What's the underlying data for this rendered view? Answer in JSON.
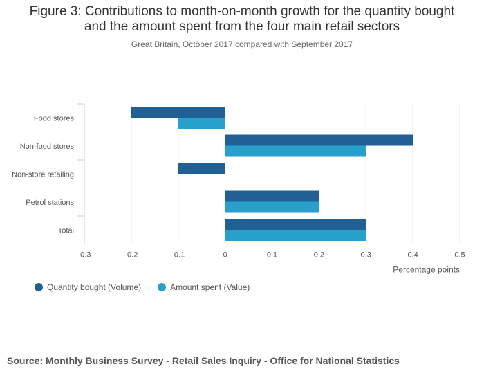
{
  "chart_data": {
    "type": "bar",
    "orientation": "horizontal",
    "title_line1": "Figure 3: Contributions to month-on-month growth for the quantity bought",
    "title_line2": "and the amount spent from the four main retail sectors",
    "subtitle": "Great Britain, October 2017 compared with September 2017",
    "categories": [
      "Food stores",
      "Non-food stores",
      "Non-store retailing",
      "Petrol stations",
      "Total"
    ],
    "series": [
      {
        "name": "Quantity bought (Volume)",
        "color": "#206095",
        "values": [
          -0.2,
          0.4,
          -0.1,
          0.2,
          0.3
        ]
      },
      {
        "name": "Amount spent (Value)",
        "color": "#27a0cc",
        "values": [
          -0.1,
          0.3,
          0.0,
          0.2,
          0.3
        ]
      }
    ],
    "xlim": [
      -0.3,
      0.5
    ],
    "xticks": [
      -0.3,
      -0.2,
      -0.1,
      0,
      0.1,
      0.2,
      0.3,
      0.4,
      0.5
    ],
    "xtick_labels": [
      "-0.3",
      "-0.2",
      "-0.1",
      "0",
      "0.1",
      "0.2",
      "0.3",
      "0.4",
      "0.5"
    ],
    "xlabel": "Percentage points",
    "ylabel": "",
    "grid": true,
    "legend_position": "bottom-left"
  },
  "source": "Source: Monthly Business Survey - Retail Sales Inquiry - Office for National Statistics"
}
